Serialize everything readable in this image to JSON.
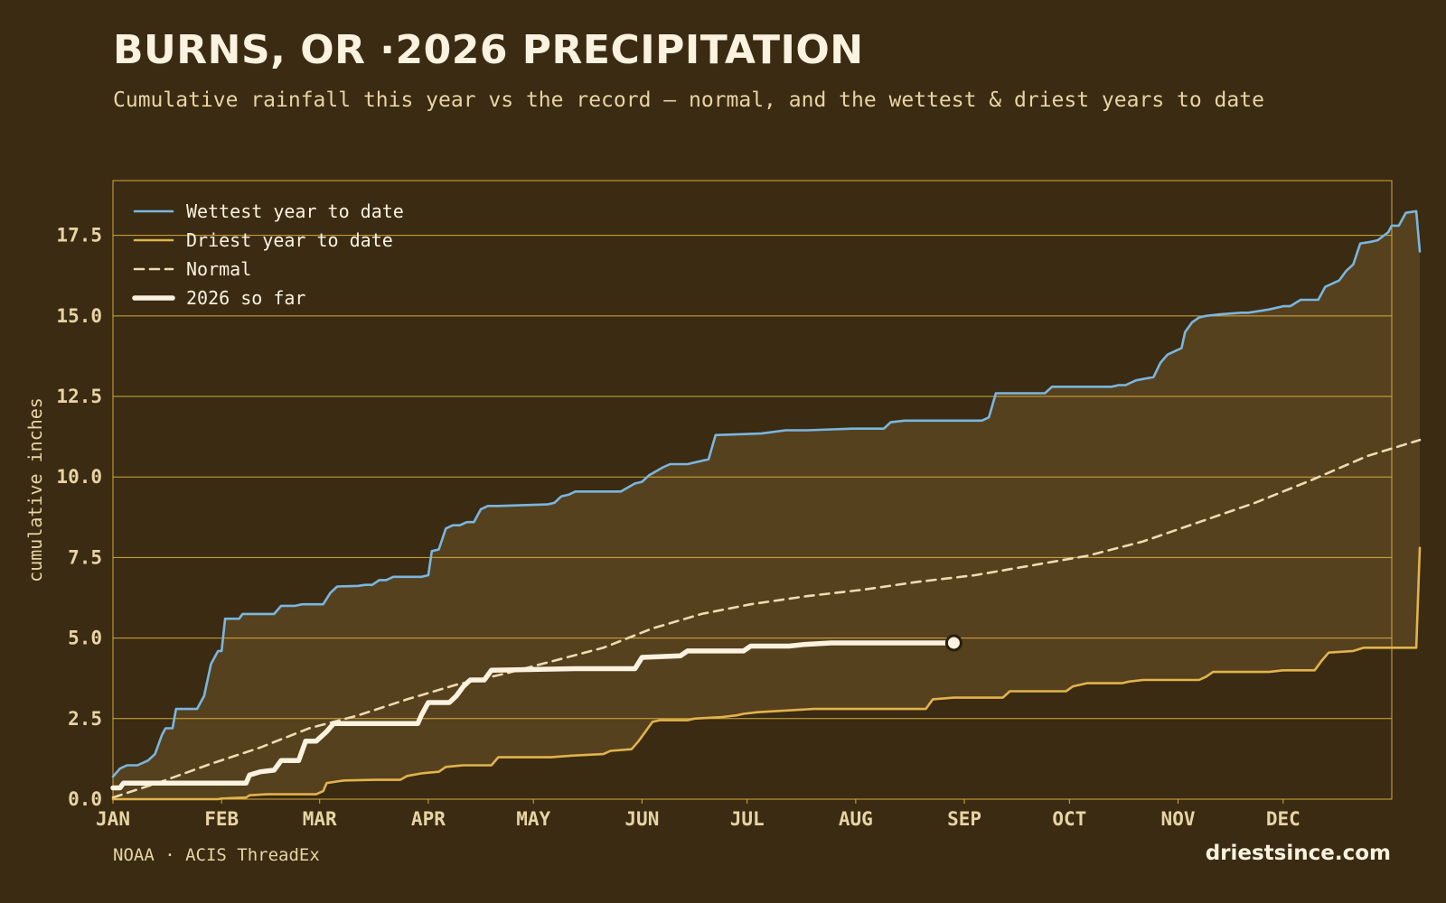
{
  "title": "BURNS, OR ·2026 PRECIPITATION",
  "subtitle": "Cumulative rainfall this year vs the record — normal, and the wettest & driest years to date",
  "footer": {
    "source": "NOAA · ACIS ThreadEx",
    "site": "driestsince.com"
  },
  "colors": {
    "background": "#3a2b12",
    "band": "#56411e",
    "grid": "#d6a93f",
    "wettest": "#7ab6e0",
    "driest": "#e2b34c",
    "normal": "#eddcb2",
    "current": "#fbf2e0"
  },
  "chart_data": {
    "type": "line",
    "ylabel": "cumulative inches",
    "ylim": [
      0,
      19.2
    ],
    "yticks": [
      "0.0",
      "2.5",
      "5.0",
      "7.5",
      "10.0",
      "12.5",
      "15.0",
      "17.5"
    ],
    "xlim": [
      0,
      365
    ],
    "months": [
      "JAN",
      "FEB",
      "MAR",
      "APR",
      "MAY",
      "JUN",
      "JUL",
      "AUG",
      "SEP",
      "OCT",
      "NOV",
      "DEC"
    ],
    "month_start_days": [
      0,
      31,
      59,
      90,
      120,
      151,
      181,
      212,
      243,
      273,
      304,
      334
    ],
    "legend_position": "top-left",
    "grid": "horizontal",
    "series": [
      {
        "name": "Wettest year to date",
        "style": "solid",
        "points": [
          [
            0,
            0.7
          ],
          [
            2,
            0.95
          ],
          [
            4,
            1.05
          ],
          [
            7,
            1.05
          ],
          [
            10,
            1.2
          ],
          [
            12,
            1.4
          ],
          [
            14,
            2.0
          ],
          [
            15,
            2.2
          ],
          [
            17,
            2.2
          ],
          [
            18,
            2.8
          ],
          [
            22,
            2.8
          ],
          [
            24,
            2.8
          ],
          [
            26,
            3.2
          ],
          [
            28,
            4.2
          ],
          [
            30,
            4.6
          ],
          [
            31,
            4.6
          ],
          [
            32,
            5.6
          ],
          [
            36,
            5.6
          ],
          [
            37,
            5.75
          ],
          [
            44,
            5.75
          ],
          [
            46,
            5.75
          ],
          [
            48,
            6.0
          ],
          [
            52,
            6.0
          ],
          [
            54,
            6.05
          ],
          [
            56,
            6.05
          ],
          [
            60,
            6.05
          ],
          [
            62,
            6.4
          ],
          [
            64,
            6.6
          ],
          [
            70,
            6.62
          ],
          [
            72,
            6.65
          ],
          [
            74,
            6.65
          ],
          [
            76,
            6.8
          ],
          [
            78,
            6.8
          ],
          [
            80,
            6.9
          ],
          [
            88,
            6.9
          ],
          [
            90,
            6.95
          ],
          [
            91,
            7.7
          ],
          [
            93,
            7.75
          ],
          [
            95,
            8.4
          ],
          [
            97,
            8.5
          ],
          [
            99,
            8.5
          ],
          [
            101,
            8.6
          ],
          [
            103,
            8.6
          ],
          [
            105,
            9.0
          ],
          [
            107,
            9.1
          ],
          [
            110,
            9.1
          ],
          [
            116,
            9.12
          ],
          [
            124,
            9.15
          ],
          [
            126,
            9.2
          ],
          [
            128,
            9.4
          ],
          [
            130,
            9.45
          ],
          [
            132,
            9.55
          ],
          [
            145,
            9.55
          ],
          [
            149,
            9.8
          ],
          [
            151,
            9.85
          ],
          [
            153,
            10.05
          ],
          [
            157,
            10.3
          ],
          [
            159,
            10.4
          ],
          [
            164,
            10.4
          ],
          [
            166,
            10.45
          ],
          [
            168,
            10.5
          ],
          [
            170,
            10.55
          ],
          [
            172,
            11.3
          ],
          [
            185,
            11.35
          ],
          [
            192,
            11.45
          ],
          [
            198,
            11.45
          ],
          [
            211,
            11.5
          ],
          [
            220,
            11.5
          ],
          [
            222,
            11.7
          ],
          [
            226,
            11.75
          ],
          [
            240,
            11.75
          ],
          [
            248,
            11.75
          ],
          [
            250,
            11.85
          ],
          [
            252,
            12.6
          ],
          [
            266,
            12.6
          ],
          [
            268,
            12.8
          ],
          [
            285,
            12.8
          ],
          [
            287,
            12.85
          ],
          [
            289,
            12.85
          ],
          [
            292,
            13.0
          ],
          [
            297,
            13.1
          ],
          [
            299,
            13.55
          ],
          [
            301,
            13.8
          ],
          [
            303,
            13.9
          ],
          [
            305,
            14.0
          ],
          [
            306,
            14.5
          ],
          [
            308,
            14.8
          ],
          [
            310,
            14.95
          ],
          [
            312,
            15.0
          ],
          [
            316,
            15.05
          ],
          [
            322,
            15.1
          ],
          [
            324,
            15.1
          ],
          [
            330,
            15.2
          ],
          [
            334,
            15.3
          ],
          [
            336,
            15.3
          ],
          [
            339,
            15.5
          ],
          [
            344,
            15.5
          ],
          [
            346,
            15.9
          ],
          [
            350,
            16.1
          ],
          [
            352,
            16.4
          ],
          [
            354,
            16.6
          ],
          [
            356,
            17.25
          ],
          [
            359,
            17.3
          ],
          [
            361,
            17.35
          ],
          [
            364,
            17.6
          ],
          [
            365,
            17.8
          ],
          [
            367,
            17.8
          ],
          [
            369,
            18.2
          ],
          [
            372,
            18.25
          ],
          [
            373,
            17.0
          ]
        ]
      },
      {
        "name": "Driest year to date",
        "style": "solid",
        "points": [
          [
            0,
            0.0
          ],
          [
            30,
            0.0
          ],
          [
            31,
            0.02
          ],
          [
            38,
            0.05
          ],
          [
            39,
            0.12
          ],
          [
            44,
            0.15
          ],
          [
            58,
            0.15
          ],
          [
            60,
            0.25
          ],
          [
            61,
            0.5
          ],
          [
            64,
            0.55
          ],
          [
            66,
            0.58
          ],
          [
            75,
            0.6
          ],
          [
            82,
            0.6
          ],
          [
            84,
            0.72
          ],
          [
            88,
            0.8
          ],
          [
            90,
            0.82
          ],
          [
            93,
            0.85
          ],
          [
            95,
            1.0
          ],
          [
            100,
            1.05
          ],
          [
            108,
            1.05
          ],
          [
            110,
            1.3
          ],
          [
            125,
            1.3
          ],
          [
            131,
            1.35
          ],
          [
            140,
            1.4
          ],
          [
            142,
            1.5
          ],
          [
            148,
            1.55
          ],
          [
            150,
            1.8
          ],
          [
            152,
            2.1
          ],
          [
            154,
            2.4
          ],
          [
            156,
            2.45
          ],
          [
            164,
            2.45
          ],
          [
            166,
            2.5
          ],
          [
            174,
            2.55
          ],
          [
            178,
            2.6
          ],
          [
            180,
            2.65
          ],
          [
            184,
            2.7
          ],
          [
            200,
            2.8
          ],
          [
            226,
            2.8
          ],
          [
            232,
            2.8
          ],
          [
            234,
            3.1
          ],
          [
            240,
            3.15
          ],
          [
            254,
            3.15
          ],
          [
            256,
            3.35
          ],
          [
            272,
            3.35
          ],
          [
            274,
            3.5
          ],
          [
            278,
            3.6
          ],
          [
            288,
            3.6
          ],
          [
            290,
            3.65
          ],
          [
            294,
            3.7
          ],
          [
            298,
            3.7
          ],
          [
            310,
            3.7
          ],
          [
            312,
            3.8
          ],
          [
            314,
            3.95
          ],
          [
            330,
            3.95
          ],
          [
            334,
            4.0
          ],
          [
            343,
            4.0
          ],
          [
            345,
            4.3
          ],
          [
            347,
            4.55
          ],
          [
            354,
            4.6
          ],
          [
            357,
            4.7
          ],
          [
            372,
            4.7
          ],
          [
            373,
            7.8
          ]
        ]
      },
      {
        "name": "Normal",
        "style": "dashed",
        "points": [
          [
            0,
            0.05
          ],
          [
            14,
            0.55
          ],
          [
            28,
            1.1
          ],
          [
            42,
            1.6
          ],
          [
            56,
            2.2
          ],
          [
            70,
            2.6
          ],
          [
            84,
            3.1
          ],
          [
            98,
            3.55
          ],
          [
            112,
            3.9
          ],
          [
            126,
            4.3
          ],
          [
            140,
            4.7
          ],
          [
            154,
            5.3
          ],
          [
            168,
            5.75
          ],
          [
            182,
            6.05
          ],
          [
            198,
            6.3
          ],
          [
            214,
            6.5
          ],
          [
            230,
            6.75
          ],
          [
            246,
            6.95
          ],
          [
            262,
            7.25
          ],
          [
            278,
            7.55
          ],
          [
            294,
            8.0
          ],
          [
            310,
            8.6
          ],
          [
            326,
            9.2
          ],
          [
            342,
            9.9
          ],
          [
            358,
            10.65
          ],
          [
            373,
            11.15
          ]
        ]
      },
      {
        "name": "2026 so far",
        "style": "bold",
        "points": [
          [
            0,
            0.35
          ],
          [
            2,
            0.35
          ],
          [
            3,
            0.5
          ],
          [
            38,
            0.5
          ],
          [
            39,
            0.75
          ],
          [
            42,
            0.85
          ],
          [
            46,
            0.9
          ],
          [
            48,
            1.2
          ],
          [
            53,
            1.2
          ],
          [
            55,
            1.8
          ],
          [
            58,
            1.8
          ],
          [
            61,
            2.1
          ],
          [
            63,
            2.35
          ],
          [
            80,
            2.35
          ],
          [
            87,
            2.35
          ],
          [
            88,
            2.6
          ],
          [
            90,
            3.0
          ],
          [
            96,
            3.0
          ],
          [
            98,
            3.2
          ],
          [
            100,
            3.5
          ],
          [
            102,
            3.7
          ],
          [
            106,
            3.7
          ],
          [
            108,
            4.0
          ],
          [
            132,
            4.05
          ],
          [
            144,
            4.05
          ],
          [
            149,
            4.05
          ],
          [
            151,
            4.4
          ],
          [
            162,
            4.45
          ],
          [
            164,
            4.6
          ],
          [
            180,
            4.6
          ],
          [
            182,
            4.75
          ],
          [
            193,
            4.75
          ],
          [
            197,
            4.8
          ],
          [
            205,
            4.85
          ],
          [
            230,
            4.85
          ],
          [
            240,
            4.85
          ]
        ]
      }
    ],
    "endpoint": {
      "series": "2026 so far",
      "x": 240,
      "y": 4.85
    }
  }
}
